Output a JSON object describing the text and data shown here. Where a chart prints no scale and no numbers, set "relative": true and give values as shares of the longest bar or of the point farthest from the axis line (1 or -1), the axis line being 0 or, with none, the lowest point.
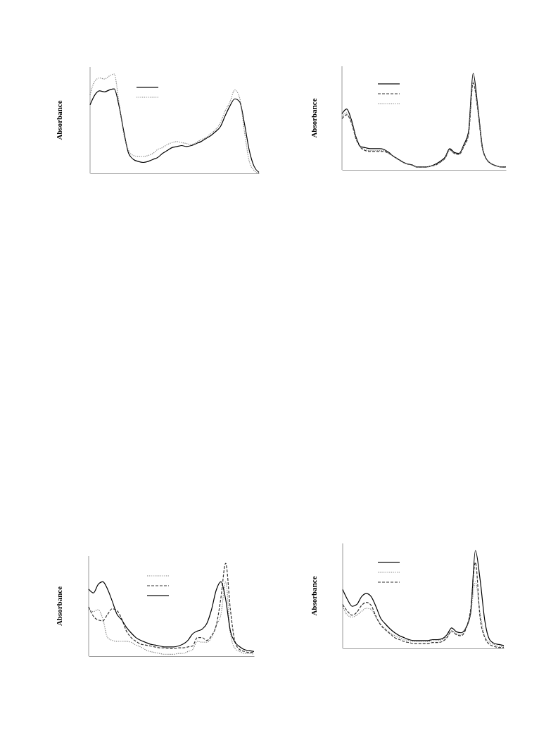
{
  "chart_data": [
    {
      "type": "line",
      "ylabel": "Absorbance",
      "relative": true,
      "categories": [
        null,
        null,
        null,
        null,
        null,
        null,
        null,
        null,
        null,
        null,
        null,
        null,
        null,
        null,
        null,
        null,
        null,
        null,
        null,
        null,
        null,
        null,
        null,
        null,
        null,
        null,
        null,
        null,
        null,
        null,
        null,
        null,
        null,
        null,
        null,
        null
      ],
      "series": [
        {
          "color": "#000000",
          "line_style": "solid",
          "values": [
            0.69,
            0.79,
            0.83,
            0.82,
            0.84,
            0.85,
            0.68,
            0.42,
            0.2,
            0.14,
            0.12,
            0.11,
            0.12,
            0.14,
            0.16,
            0.2,
            0.23,
            0.26,
            0.27,
            0.28,
            0.27,
            0.28,
            0.3,
            0.32,
            0.35,
            0.38,
            0.42,
            0.47,
            0.58,
            0.68,
            0.75,
            0.72,
            0.5,
            0.23,
            0.07,
            0.01
          ]
        },
        {
          "color": "#808080",
          "line_style": "dotted",
          "values": [
            0.79,
            0.93,
            0.96,
            0.95,
            0.98,
            1.0,
            0.71,
            0.39,
            0.23,
            0.18,
            0.17,
            0.17,
            0.18,
            0.2,
            0.24,
            0.26,
            0.29,
            0.31,
            0.32,
            0.31,
            0.3,
            0.29,
            0.31,
            0.34,
            0.36,
            0.4,
            0.44,
            0.51,
            0.63,
            0.72,
            0.84,
            0.76,
            0.42,
            0.12,
            0.03,
            0.0
          ]
        }
      ]
    },
    {
      "type": "line",
      "ylabel": "Absorbance",
      "relative": true,
      "categories": [
        null,
        null,
        null,
        null,
        null,
        null,
        null,
        null,
        null,
        null,
        null,
        null,
        null,
        null,
        null,
        null,
        null,
        null,
        null,
        null,
        null,
        null,
        null,
        null,
        null,
        null,
        null,
        null,
        null,
        null,
        null,
        null,
        null,
        null,
        null,
        null
      ],
      "series": [
        {
          "color": "#000000",
          "line_style": "solid",
          "values": [
            0.58,
            0.63,
            0.52,
            0.34,
            0.24,
            0.23,
            0.22,
            0.22,
            0.22,
            0.21,
            0.18,
            0.14,
            0.11,
            0.08,
            0.06,
            0.05,
            0.03,
            0.03,
            0.03,
            0.04,
            0.06,
            0.09,
            0.13,
            0.22,
            0.18,
            0.17,
            0.26,
            0.39,
            1.0,
            0.65,
            0.23,
            0.1,
            0.06,
            0.04,
            0.03,
            0.03
          ]
        },
        {
          "color": "#333333",
          "line_style": "dashed",
          "values": [
            0.53,
            0.57,
            0.49,
            0.32,
            0.23,
            0.2,
            0.19,
            0.19,
            0.19,
            0.19,
            0.17,
            0.14,
            0.11,
            0.08,
            0.06,
            0.05,
            0.03,
            0.03,
            0.03,
            0.04,
            0.05,
            0.08,
            0.12,
            0.21,
            0.17,
            0.16,
            0.24,
            0.36,
            0.9,
            0.62,
            0.22,
            0.1,
            0.06,
            0.04,
            0.03,
            0.03
          ]
        },
        {
          "color": "#808080",
          "line_style": "dotted",
          "values": [
            0.55,
            0.59,
            0.5,
            0.33,
            0.24,
            0.21,
            0.2,
            0.2,
            0.2,
            0.2,
            0.17,
            0.14,
            0.11,
            0.08,
            0.06,
            0.05,
            0.03,
            0.03,
            0.03,
            0.04,
            0.05,
            0.08,
            0.12,
            0.2,
            0.17,
            0.16,
            0.25,
            0.37,
            0.92,
            0.62,
            0.22,
            0.1,
            0.06,
            0.04,
            0.03,
            0.03
          ]
        }
      ]
    },
    {
      "type": "line",
      "ylabel": "Absorbance",
      "relative": true,
      "categories": [
        null,
        null,
        null,
        null,
        null,
        null,
        null,
        null,
        null,
        null,
        null,
        null,
        null,
        null,
        null,
        null,
        null,
        null,
        null,
        null,
        null,
        null,
        null,
        null,
        null,
        null,
        null,
        null,
        null,
        null,
        null,
        null,
        null,
        null,
        null,
        null
      ],
      "series": [
        {
          "color": "#808080",
          "line_style": "dotted",
          "values": [
            0.5,
            0.48,
            0.5,
            0.4,
            0.2,
            0.17,
            0.16,
            0.16,
            0.16,
            0.15,
            0.12,
            0.1,
            0.07,
            0.05,
            0.04,
            0.03,
            0.02,
            0.02,
            0.02,
            0.03,
            0.03,
            0.05,
            0.07,
            0.16,
            0.15,
            0.15,
            0.2,
            0.33,
            0.45,
            0.8,
            0.25,
            0.08,
            0.05,
            0.03,
            0.03,
            0.02
          ]
        },
        {
          "color": "#333333",
          "line_style": "dashed",
          "values": [
            0.53,
            0.43,
            0.39,
            0.38,
            0.45,
            0.51,
            0.49,
            0.4,
            0.27,
            0.2,
            0.16,
            0.13,
            0.12,
            0.11,
            0.1,
            0.09,
            0.09,
            0.08,
            0.08,
            0.09,
            0.09,
            0.1,
            0.11,
            0.2,
            0.2,
            0.17,
            0.22,
            0.33,
            0.63,
            1.0,
            0.5,
            0.15,
            0.07,
            0.05,
            0.04,
            0.04
          ]
        },
        {
          "color": "#000000",
          "line_style": "solid",
          "values": [
            0.72,
            0.68,
            0.77,
            0.8,
            0.72,
            0.59,
            0.45,
            0.39,
            0.31,
            0.25,
            0.2,
            0.17,
            0.15,
            0.13,
            0.12,
            0.11,
            0.1,
            0.1,
            0.1,
            0.11,
            0.13,
            0.17,
            0.24,
            0.27,
            0.29,
            0.35,
            0.5,
            0.71,
            0.8,
            0.61,
            0.27,
            0.15,
            0.1,
            0.07,
            0.06,
            0.05
          ]
        }
      ]
    },
    {
      "type": "line",
      "ylabel": "Absorbance",
      "relative": true,
      "categories": [
        null,
        null,
        null,
        null,
        null,
        null,
        null,
        null,
        null,
        null,
        null,
        null,
        null,
        null,
        null,
        null,
        null,
        null,
        null,
        null,
        null,
        null,
        null,
        null,
        null,
        null,
        null,
        null,
        null,
        null,
        null,
        null,
        null,
        null,
        null
      ],
      "series": [
        {
          "color": "#000000",
          "line_style": "solid",
          "values": [
            0.6,
            0.5,
            0.43,
            0.45,
            0.53,
            0.56,
            0.53,
            0.43,
            0.31,
            0.25,
            0.2,
            0.16,
            0.13,
            0.11,
            0.09,
            0.08,
            0.08,
            0.08,
            0.08,
            0.09,
            0.09,
            0.1,
            0.14,
            0.21,
            0.17,
            0.16,
            0.21,
            0.36,
            1.0,
            0.7,
            0.28,
            0.09,
            0.05,
            0.04,
            0.03
          ]
        },
        {
          "color": "#808080",
          "line_style": "dotted",
          "values": [
            0.43,
            0.34,
            0.32,
            0.34,
            0.38,
            0.41,
            0.4,
            0.32,
            0.25,
            0.2,
            0.16,
            0.13,
            0.11,
            0.09,
            0.08,
            0.07,
            0.07,
            0.07,
            0.07,
            0.08,
            0.08,
            0.09,
            0.12,
            0.17,
            0.15,
            0.14,
            0.21,
            0.36,
            0.68,
            0.36,
            0.12,
            0.06,
            0.04,
            0.02,
            0.02
          ]
        },
        {
          "color": "#333333",
          "line_style": "dashed",
          "values": [
            0.45,
            0.38,
            0.34,
            0.37,
            0.44,
            0.47,
            0.44,
            0.33,
            0.24,
            0.19,
            0.15,
            0.11,
            0.09,
            0.07,
            0.06,
            0.05,
            0.05,
            0.05,
            0.05,
            0.06,
            0.06,
            0.07,
            0.11,
            0.18,
            0.14,
            0.13,
            0.2,
            0.4,
            0.88,
            0.31,
            0.11,
            0.04,
            0.02,
            0.01,
            0.01
          ]
        }
      ]
    }
  ]
}
